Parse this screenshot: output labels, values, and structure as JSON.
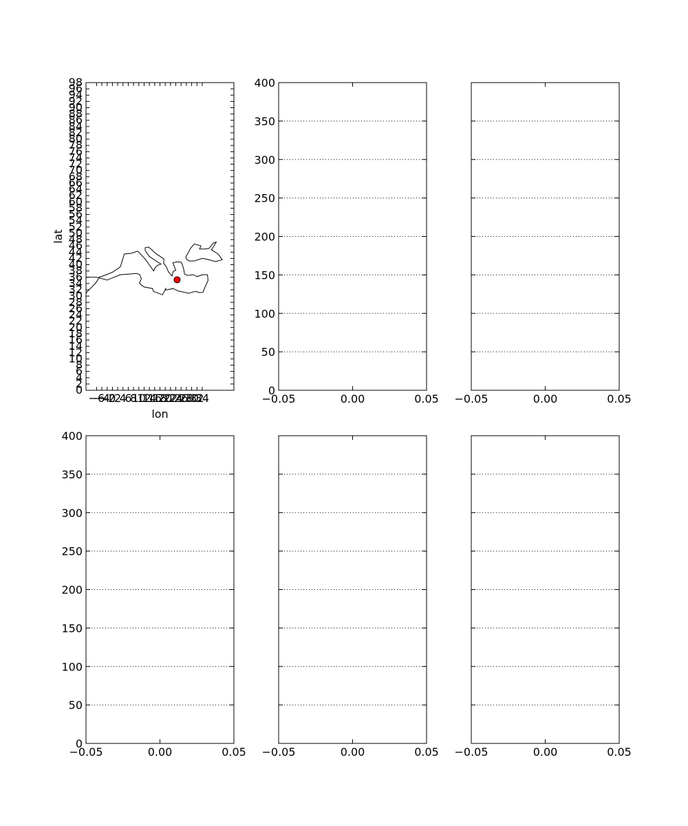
{
  "chart_data": [
    {
      "type": "scatter",
      "panel": "map",
      "xlabel": "lon",
      "ylabel": "lat",
      "xlim": [
        -10,
        46
      ],
      "ylim": [
        0,
        98
      ],
      "x_ticks": [
        -6,
        -4,
        -2,
        0,
        2,
        4,
        6,
        8,
        10,
        12,
        14,
        16,
        18,
        20,
        22,
        24,
        26,
        28,
        30,
        32,
        34
      ],
      "x_tick_labels": [
        "−6",
        "−4",
        "−2",
        "0",
        "2",
        "4",
        "6",
        "8",
        "10",
        "12",
        "14",
        "16",
        "18",
        "20",
        "22",
        "24",
        "26",
        "28",
        "30",
        "32",
        "34"
      ],
      "y_ticks": [
        0,
        2,
        4,
        6,
        8,
        10,
        12,
        14,
        16,
        18,
        20,
        22,
        24,
        26,
        28,
        30,
        32,
        34,
        36,
        38,
        40,
        42,
        44,
        46,
        48,
        50,
        52,
        54,
        56,
        58,
        60,
        62,
        64,
        66,
        68,
        70,
        72,
        74,
        76,
        78,
        80,
        82,
        84,
        86,
        88,
        90,
        92,
        94,
        96,
        98
      ],
      "grid": false,
      "coastline": "Mediterranean Sea and Black Sea",
      "points": [
        {
          "lon": 24.5,
          "lat": 35.2,
          "color": "#ff0000"
        }
      ]
    },
    {
      "type": "line",
      "panel": "row1-col2",
      "xlim": [
        -0.05,
        0.05
      ],
      "ylim": [
        0,
        400
      ],
      "x_ticks": [
        -0.05,
        0.0,
        0.05
      ],
      "x_tick_labels": [
        "−0.05",
        "0.00",
        "0.05"
      ],
      "y_ticks": [
        0,
        50,
        100,
        150,
        200,
        250,
        300,
        350,
        400
      ],
      "y_tick_labels_shown": true,
      "grid": "horizontal dotted",
      "series": []
    },
    {
      "type": "line",
      "panel": "row1-col3",
      "xlim": [
        -0.05,
        0.05
      ],
      "ylim": [
        0,
        400
      ],
      "x_ticks": [
        -0.05,
        0.0,
        0.05
      ],
      "x_tick_labels": [
        "−0.05",
        "0.00",
        "0.05"
      ],
      "y_ticks": [
        0,
        50,
        100,
        150,
        200,
        250,
        300,
        350,
        400
      ],
      "y_tick_labels_shown": false,
      "grid": "horizontal dotted",
      "series": []
    },
    {
      "type": "line",
      "panel": "row2-col1",
      "xlim": [
        -0.05,
        0.05
      ],
      "ylim": [
        0,
        400
      ],
      "x_ticks": [
        -0.05,
        0.0,
        0.05
      ],
      "x_tick_labels": [
        "−0.05",
        "0.00",
        "0.05"
      ],
      "y_ticks": [
        0,
        50,
        100,
        150,
        200,
        250,
        300,
        350,
        400
      ],
      "y_tick_labels_shown": true,
      "grid": "horizontal dotted",
      "series": []
    },
    {
      "type": "line",
      "panel": "row2-col2",
      "xlim": [
        -0.05,
        0.05
      ],
      "ylim": [
        0,
        400
      ],
      "x_ticks": [
        -0.05,
        0.0,
        0.05
      ],
      "x_tick_labels": [
        "−0.05",
        "0.00",
        "0.05"
      ],
      "y_ticks": [
        0,
        50,
        100,
        150,
        200,
        250,
        300,
        350,
        400
      ],
      "y_tick_labels_shown": false,
      "grid": "horizontal dotted",
      "series": []
    },
    {
      "type": "line",
      "panel": "row2-col3",
      "xlim": [
        -0.05,
        0.05
      ],
      "ylim": [
        0,
        400
      ],
      "x_ticks": [
        -0.05,
        0.0,
        0.05
      ],
      "x_tick_labels": [
        "−0.05",
        "0.00",
        "0.05"
      ],
      "y_ticks": [
        0,
        50,
        100,
        150,
        200,
        250,
        300,
        350,
        400
      ],
      "y_tick_labels_shown": false,
      "grid": "horizontal dotted",
      "series": []
    }
  ]
}
